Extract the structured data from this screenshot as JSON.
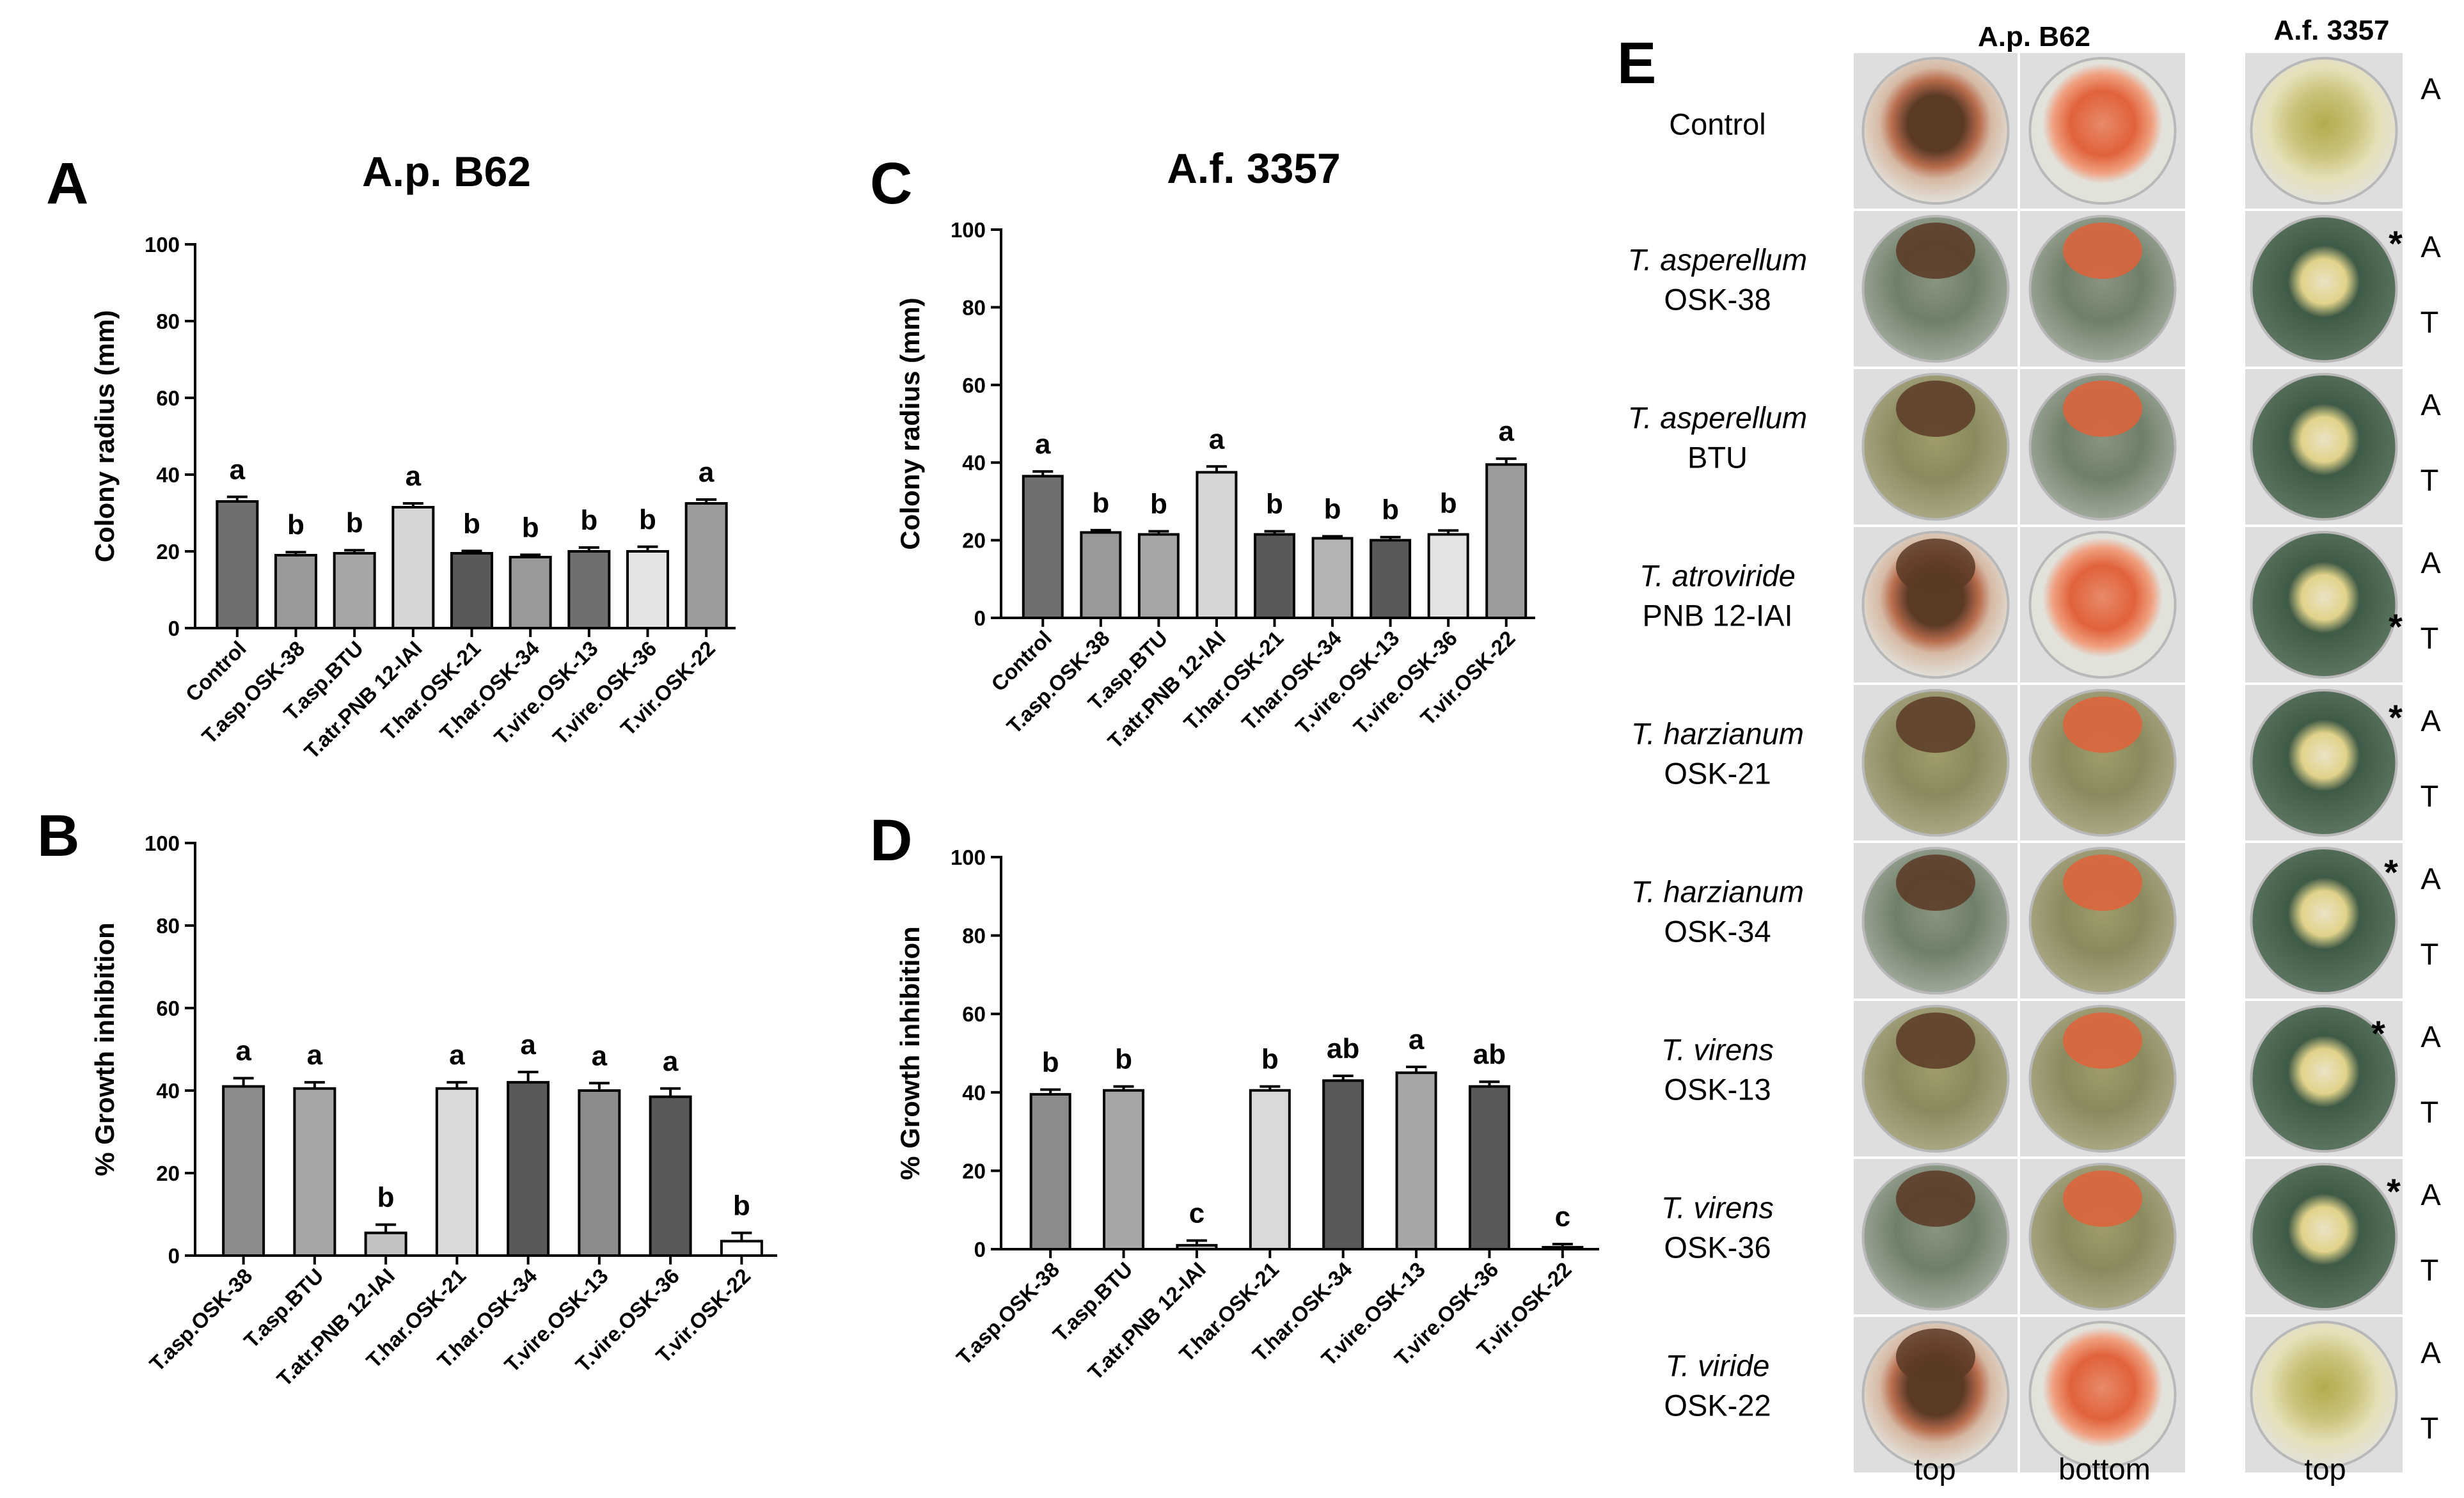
{
  "chart_data": [
    {
      "panel": "A",
      "type": "bar",
      "title": "A.p. B62",
      "xlabel": "",
      "ylabel": "Colony radius (mm)",
      "ylim": [
        0,
        100
      ],
      "yticks": [
        0,
        20,
        40,
        60,
        80,
        100
      ],
      "categories": [
        "Control",
        "T.asp.OSK-38",
        "T.asp.BTU",
        "T.atr.PNB 12-IAI",
        "T.har.OSK-21",
        "T.har.OSK-34",
        "T.vire.OSK-13",
        "T.vire.OSK-36",
        "T.vir.OSK-22"
      ],
      "values": [
        33,
        19,
        19.5,
        31.5,
        19.5,
        18.5,
        20,
        20,
        32.5
      ],
      "errors": [
        1.2,
        0.8,
        0.8,
        1.0,
        0.6,
        0.6,
        1.0,
        1.2,
        1.0
      ],
      "letters": [
        "a",
        "b",
        "b",
        "a",
        "b",
        "b",
        "b",
        "b",
        "a"
      ],
      "colors": [
        "#6f6f6f",
        "#999999",
        "#a6a6a6",
        "#d6d6d6",
        "#595959",
        "#9a9a9a",
        "#6f6f6f",
        "#e3e3e3",
        "#9c9c9c"
      ]
    },
    {
      "panel": "B",
      "type": "bar",
      "title": "",
      "xlabel": "",
      "ylabel": "% Growth inhibition",
      "ylim": [
        0,
        100
      ],
      "yticks": [
        0,
        20,
        40,
        60,
        80,
        100
      ],
      "categories": [
        "T.asp.OSK-38",
        "T.asp.BTU",
        "T.atr.PNB 12-IAI",
        "T.har.OSK-21",
        "T.har.OSK-34",
        "T.vire.OSK-13",
        "T.vire.OSK-36",
        "T.vir.OSK-22"
      ],
      "values": [
        41,
        40.5,
        5.5,
        40.5,
        42,
        40,
        38.5,
        3.5
      ],
      "errors": [
        2.0,
        1.5,
        2.0,
        1.5,
        2.5,
        1.8,
        2.0,
        2.0
      ],
      "letters": [
        "a",
        "a",
        "b",
        "a",
        "a",
        "a",
        "a",
        "b"
      ],
      "colors": [
        "#8c8c8c",
        "#a6a6a6",
        "#c2c2c2",
        "#d9d9d9",
        "#595959",
        "#8c8c8c",
        "#595959",
        "#ffffff"
      ]
    },
    {
      "panel": "C",
      "type": "bar",
      "title": "A.f. 3357",
      "xlabel": "",
      "ylabel": "Colony radius (mm)",
      "ylim": [
        0,
        100
      ],
      "yticks": [
        0,
        20,
        40,
        60,
        80,
        100
      ],
      "categories": [
        "Control",
        "T.asp.OSK-38",
        "T.asp.BTU",
        "T.atr.PNB 12-IAI",
        "T.har.OSK-21",
        "T.har.OSK-34",
        "T.vire.OSK-13",
        "T.vire.OSK-36",
        "T.vir.OSK-22"
      ],
      "values": [
        36.5,
        22,
        21.5,
        37.5,
        21.5,
        20.5,
        20,
        21.5,
        39.5
      ],
      "errors": [
        1.2,
        0.6,
        0.8,
        1.5,
        0.8,
        0.5,
        0.8,
        1.0,
        1.5
      ],
      "letters": [
        "a",
        "b",
        "b",
        "a",
        "b",
        "b",
        "b",
        "b",
        "a"
      ],
      "colors": [
        "#6f6f6f",
        "#999999",
        "#a6a6a6",
        "#d6d6d6",
        "#595959",
        "#b3b3b3",
        "#595959",
        "#e3e3e3",
        "#9c9c9c"
      ]
    },
    {
      "panel": "D",
      "type": "bar",
      "title": "",
      "xlabel": "",
      "ylabel": "% Growth inhibition",
      "ylim": [
        0,
        100
      ],
      "yticks": [
        0,
        20,
        40,
        60,
        80,
        100
      ],
      "categories": [
        "T.asp.OSK-38",
        "T.asp.BTU",
        "T.atr.PNB 12-IAI",
        "T.har.OSK-21",
        "T.har.OSK-34",
        "T.vire.OSK-13",
        "T.vire.OSK-36",
        "T.vir.OSK-22"
      ],
      "values": [
        39.5,
        40.5,
        1,
        40.5,
        43,
        45,
        41.5,
        0.5
      ],
      "errors": [
        1.2,
        1.0,
        1.2,
        1.0,
        1.2,
        1.5,
        1.2,
        0.8
      ],
      "letters": [
        "b",
        "b",
        "c",
        "b",
        "ab",
        "a",
        "ab",
        "c"
      ],
      "colors": [
        "#8c8c8c",
        "#a6a6a6",
        "#c2c2c2",
        "#d9d9d9",
        "#595959",
        "#a6a6a6",
        "#595959",
        "#ffffff"
      ]
    }
  ],
  "panel_e": {
    "label": "E",
    "col_headers": [
      "A.p. B62",
      "A.f. 3357"
    ],
    "bottom_labels": [
      "top",
      "bottom",
      "top"
    ],
    "rows": [
      {
        "species": "",
        "name": "Control",
        "ab": [
          "A"
        ],
        "stars": []
      },
      {
        "species": "T. asperellum",
        "name": "OSK-38",
        "ab": [
          "A",
          "T"
        ],
        "stars": [
          "*"
        ]
      },
      {
        "species": "T. asperellum",
        "name": "BTU",
        "ab": [
          "A",
          "T"
        ],
        "stars": []
      },
      {
        "species": "T. atroviride",
        "name": "PNB 12-IAI",
        "ab": [
          "A",
          "T"
        ],
        "stars": [
          "*"
        ]
      },
      {
        "species": "T. harzianum",
        "name": "OSK-21",
        "ab": [
          "A",
          "T"
        ],
        "stars": [
          "*"
        ]
      },
      {
        "species": "T. harzianum",
        "name": "OSK-34",
        "ab": [
          "A",
          "T"
        ],
        "stars": [
          "*"
        ]
      },
      {
        "species": "T. virens",
        "name": "OSK-13",
        "ab": [
          "A",
          "T"
        ],
        "stars": [
          "*"
        ]
      },
      {
        "species": "T. virens",
        "name": "OSK-36",
        "ab": [
          "A",
          "T"
        ],
        "stars": [
          "*"
        ]
      },
      {
        "species": "T. viride",
        "name": "OSK-22",
        "ab": [
          "A",
          "T"
        ],
        "stars": []
      }
    ],
    "plate_colors": {
      "apb_top_ring": "#b86d4e",
      "apb_top_center": "#5b3a26",
      "apb_bottom": "#e0623a",
      "afl_ctrl": "#c8c27a",
      "tricho_green": "#6f7f68",
      "tricho_olive": "#8a8a5e",
      "agar": "#e2e1da",
      "afl_dark": "#3f5a46",
      "afl_light": "#e9e3c4"
    }
  }
}
